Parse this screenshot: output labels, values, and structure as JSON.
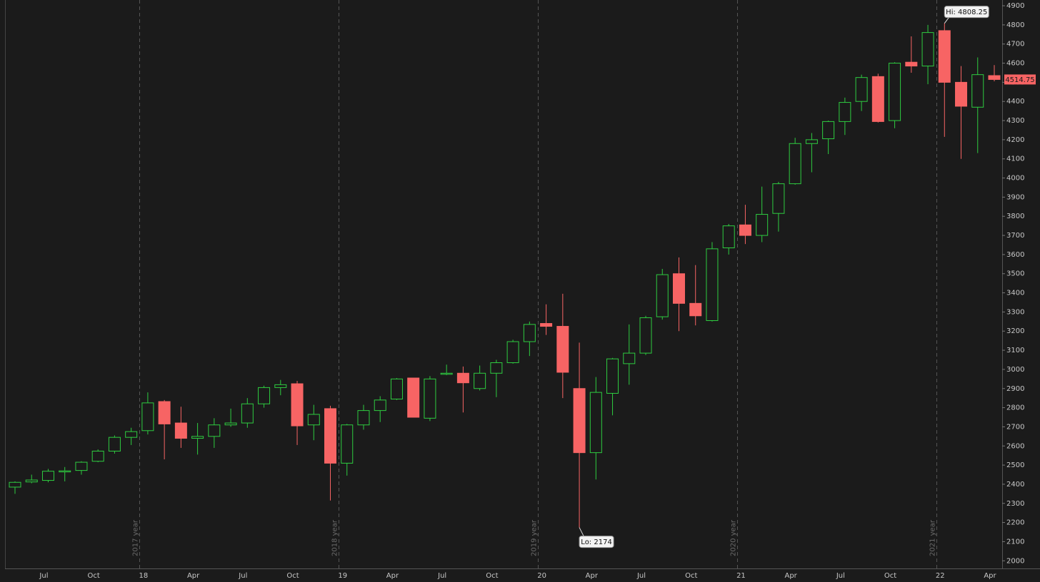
{
  "chart_data": {
    "type": "candlestick",
    "categories": [
      null,
      null,
      "Jul",
      null,
      null,
      "Oct",
      null,
      null,
      "18",
      null,
      null,
      "Apr",
      null,
      null,
      "Jul",
      null,
      null,
      "Oct",
      null,
      null,
      "19",
      null,
      null,
      "Apr",
      null,
      null,
      "Jul",
      null,
      null,
      "Oct",
      null,
      null,
      "20",
      null,
      null,
      "Apr",
      null,
      null,
      "Jul",
      null,
      null,
      "Oct",
      null,
      null,
      "21",
      null,
      null,
      "Apr",
      null,
      null,
      "Jul",
      null,
      null,
      "Oct",
      null,
      null,
      "22",
      null,
      null,
      "Apr"
    ],
    "open": [
      2385,
      2412,
      2420,
      2468,
      2472,
      2520,
      2573,
      2645,
      2680,
      2832,
      2720,
      2640,
      2650,
      2710,
      2720,
      2820,
      2905,
      2925,
      2710,
      2795,
      2510,
      2710,
      2785,
      2845,
      2955,
      2745,
      2975,
      2980,
      2900,
      2980,
      3035,
      3145,
      3240,
      3225,
      2900,
      2565,
      2875,
      3030,
      3085,
      3275,
      3500,
      3345,
      3255,
      3635,
      3755,
      3700,
      3815,
      3970,
      4180,
      4205,
      4295,
      4400,
      4530,
      4300,
      4605,
      4585,
      4770,
      4500,
      4370,
      4535
    ],
    "high": [
      2415,
      2450,
      2480,
      2490,
      2520,
      2582,
      2655,
      2695,
      2880,
      2840,
      2805,
      2720,
      2745,
      2795,
      2850,
      2915,
      2945,
      2940,
      2815,
      2810,
      2715,
      2815,
      2860,
      2955,
      2955,
      2965,
      3025,
      3015,
      3020,
      3050,
      3155,
      3250,
      3340,
      3395,
      3140,
      2960,
      3060,
      3235,
      3280,
      3525,
      3585,
      3545,
      3665,
      3760,
      3860,
      3955,
      3980,
      4210,
      4235,
      4300,
      4420,
      4540,
      4545,
      4605,
      4740,
      4800,
      4808.25,
      4585,
      4630,
      4590
    ],
    "low": [
      2350,
      2405,
      2410,
      2415,
      2450,
      2515,
      2560,
      2605,
      2660,
      2530,
      2590,
      2555,
      2590,
      2700,
      2695,
      2800,
      2865,
      2605,
      2630,
      2315,
      2445,
      2685,
      2725,
      2840,
      2750,
      2730,
      2970,
      2775,
      2890,
      2855,
      3030,
      3070,
      3180,
      2850,
      2174,
      2425,
      2760,
      2920,
      3075,
      3260,
      3200,
      3230,
      3250,
      3600,
      3655,
      3665,
      3720,
      3965,
      4030,
      4125,
      4225,
      4350,
      4290,
      4260,
      4550,
      4490,
      4215,
      4100,
      4130,
      4505
    ],
    "close": [
      2410,
      2422,
      2468,
      2470,
      2515,
      2573,
      2645,
      2675,
      2825,
      2715,
      2640,
      2650,
      2710,
      2720,
      2820,
      2905,
      2920,
      2705,
      2765,
      2510,
      2710,
      2785,
      2840,
      2950,
      2750,
      2950,
      2980,
      2930,
      2980,
      3035,
      3145,
      3235,
      3225,
      2985,
      2565,
      2880,
      3055,
      3085,
      3270,
      3495,
      3345,
      3280,
      3630,
      3750,
      3700,
      3810,
      3970,
      4180,
      4200,
      4295,
      4395,
      4525,
      4295,
      4600,
      4585,
      4760,
      4500,
      4375,
      4540,
      4514.75
    ],
    "up_color": "#2ecc40",
    "down_color": "#f76464",
    "ylim": [
      1960,
      4930
    ],
    "yticks": [
      2000,
      2100,
      2200,
      2300,
      2400,
      2500,
      2600,
      2700,
      2800,
      2900,
      3000,
      3100,
      3200,
      3300,
      3400,
      3500,
      3600,
      3700,
      3800,
      3900,
      4000,
      4100,
      4200,
      4300,
      4400,
      4500,
      4600,
      4700,
      4800,
      4900
    ],
    "year_markers": [
      "2017 year",
      "2018 year",
      "2019 year",
      "2020 year",
      "2021 year"
    ],
    "high_label": "Hi: 4808.25",
    "low_label": "Lo: 2174",
    "last_price": 4514.75
  }
}
